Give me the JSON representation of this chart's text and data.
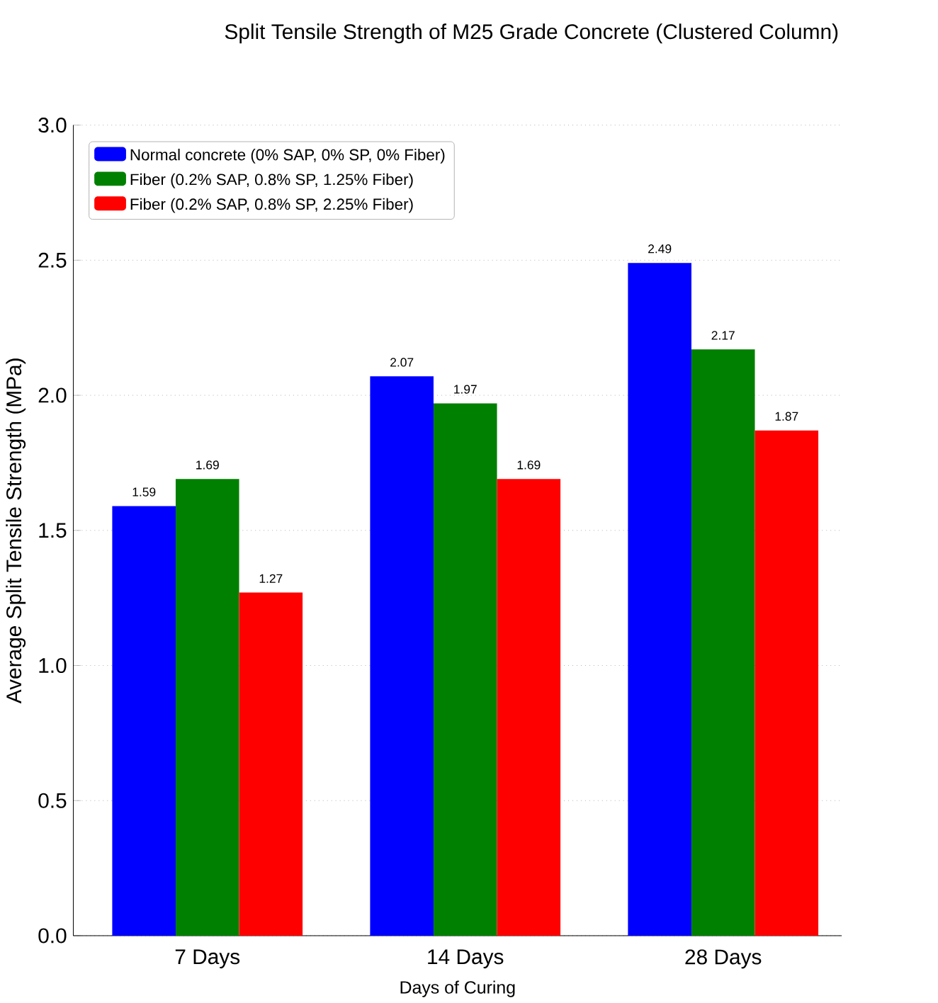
{
  "chart_data": {
    "type": "bar",
    "title": "Split Tensile Strength of M25 Grade Concrete (Clustered Column)",
    "xlabel": "Days of Curing",
    "ylabel": "Average Split Tensile Strength (MPa)",
    "categories": [
      "7 Days",
      "14 Days",
      "28 Days"
    ],
    "series": [
      {
        "name": "Normal concrete (0% SAP, 0% SP, 0% Fiber)",
        "color": "#0000ff",
        "values": [
          1.59,
          2.07,
          2.49
        ]
      },
      {
        "name": "Fiber (0.2% SAP, 0.8% SP, 1.25% Fiber)",
        "color": "#008000",
        "values": [
          1.69,
          1.97,
          2.17
        ]
      },
      {
        "name": "Fiber (0.2% SAP, 0.8% SP, 2.25% Fiber)",
        "color": "#ff0000",
        "values": [
          1.27,
          1.69,
          1.87
        ]
      }
    ],
    "ylim": [
      0,
      3
    ],
    "yticks": [
      {
        "value": 0,
        "label": "0.0"
      },
      {
        "value": 0.5,
        "label": "0.5"
      },
      {
        "value": 1,
        "label": "1.0"
      },
      {
        "value": 1.5,
        "label": "1.5"
      },
      {
        "value": 2,
        "label": "2.0"
      },
      {
        "value": 2.5,
        "label": "2.5"
      },
      {
        "value": 3,
        "label": "3.0"
      }
    ],
    "grid": "y",
    "legend": "top left",
    "data_labels": true
  }
}
